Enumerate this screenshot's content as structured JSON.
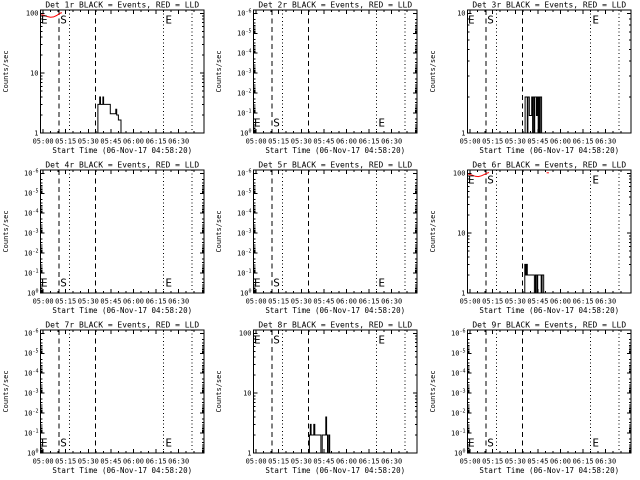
{
  "window": {
    "background": "#ffffff",
    "foreground": "#000000"
  },
  "chart_data": {
    "type": "line",
    "grid": {
      "rows": 3,
      "cols": 3
    },
    "shared": {
      "xlabel": "Start Time (06-Nov-17 04:58:20)",
      "ylabel": "Counts/sec",
      "x_ticks": [
        {
          "t": 0,
          "label": "05:00"
        },
        {
          "t": 15,
          "label": "05:15"
        },
        {
          "t": 30,
          "label": "05:30"
        },
        {
          "t": 45,
          "label": "05:45"
        },
        {
          "t": 60,
          "label": "06:00"
        },
        {
          "t": 75,
          "label": "06:15"
        },
        {
          "t": 90,
          "label": "06:30"
        }
      ],
      "x_domain_minutes_rel_0500": [
        -1.7,
        106.8
      ],
      "x_minor_step_min": 5,
      "series_colors": {
        "events": "#000000",
        "lld": "#ff0000"
      },
      "vlines": [
        {
          "t": 10.6,
          "style": "dashed"
        },
        {
          "t": 17.6,
          "style": "dotted"
        },
        {
          "t": 34.8,
          "style": "dashed"
        },
        {
          "t": 80.0,
          "style": "dotted"
        },
        {
          "t": 98.8,
          "style": "dotted"
        }
      ],
      "markers": [
        {
          "label": "E",
          "t": -1.4
        },
        {
          "label": "S",
          "t": 11.4
        },
        {
          "label": "E",
          "t": 81.2
        }
      ]
    },
    "plots": [
      {
        "id": "det-1r",
        "title": "Det 1r BLACK = Events, RED = LLD",
        "y_axis": {
          "kind": "log",
          "tick_values": [
            100,
            10,
            1
          ],
          "tick_labels": [
            "100",
            "10",
            "1"
          ]
        },
        "marker_row": "top",
        "events_steps": [
          [
            36.4,
            3
          ],
          [
            37.6,
            4
          ],
          [
            38.1,
            3
          ],
          [
            39.7,
            4
          ],
          [
            40.2,
            3
          ],
          [
            44.6,
            2.1
          ],
          [
            48.3,
            2.5
          ],
          [
            48.9,
            2
          ],
          [
            50.0,
            1.65
          ],
          [
            51.7,
            1
          ]
        ],
        "lld": [
          [
            [
              -1.2,
              95
            ],
            [
              1.0,
              92
            ],
            [
              3.0,
              88
            ],
            [
              5.0,
              86
            ],
            [
              7.0,
              87
            ],
            [
              9.0,
              92
            ],
            [
              10.5,
              97
            ],
            [
              11.7,
              101
            ],
            [
              12.6,
              102
            ]
          ]
        ]
      },
      {
        "id": "det-2r",
        "title": "Det 2r BLACK = Events, RED = LLD",
        "y_axis": {
          "kind": "log_pow_inverted",
          "exponents": [
            -6,
            -5,
            -4,
            -3,
            -2,
            -1,
            0
          ]
        },
        "marker_row": "bottom",
        "events_steps": [],
        "lld": []
      },
      {
        "id": "det-3r",
        "title": "Det 3r BLACK = Events, RED = LLD",
        "y_axis": {
          "kind": "log",
          "tick_values": [
            10,
            1
          ],
          "tick_labels": [
            "10",
            "1"
          ]
        },
        "marker_row": "top",
        "events_steps": [
          [
            36.5,
            2
          ],
          [
            38.0,
            1
          ],
          [
            38.4,
            2
          ],
          [
            39.3,
            1.4
          ],
          [
            40.9,
            2
          ],
          [
            41.5,
            1
          ],
          [
            41.9,
            2
          ],
          [
            42.6,
            1
          ],
          [
            42.9,
            2
          ],
          [
            44.0,
            1.4
          ],
          [
            44.6,
            2
          ],
          [
            45.2,
            1
          ],
          [
            45.6,
            2
          ],
          [
            46.2,
            1
          ],
          [
            46.6,
            2
          ],
          [
            47.5,
            1
          ]
        ],
        "lld": []
      },
      {
        "id": "det-4r",
        "title": "Det 4r BLACK = Events, RED = LLD",
        "y_axis": {
          "kind": "log_pow_inverted",
          "exponents": [
            -6,
            -5,
            -4,
            -3,
            -2,
            -1,
            0
          ]
        },
        "marker_row": "bottom",
        "events_steps": [],
        "lld": []
      },
      {
        "id": "det-5r",
        "title": "Det 5r BLACK = Events, RED = LLD",
        "y_axis": {
          "kind": "log_pow_inverted",
          "exponents": [
            -6,
            -5,
            -4,
            -3,
            -2,
            -1,
            0
          ]
        },
        "marker_row": "bottom",
        "events_steps": [],
        "lld": []
      },
      {
        "id": "det-6r",
        "title": "Det 6r BLACK = Events, RED = LLD",
        "y_axis": {
          "kind": "log",
          "tick_values": [
            100,
            10,
            1
          ],
          "tick_labels": [
            "100",
            "10",
            "1"
          ]
        },
        "marker_row": "top",
        "events_steps": [
          [
            36.3,
            3
          ],
          [
            36.9,
            2
          ],
          [
            37.4,
            3
          ],
          [
            38.0,
            2
          ],
          [
            42.7,
            1
          ],
          [
            43.4,
            2
          ],
          [
            44.2,
            1
          ],
          [
            44.9,
            2
          ],
          [
            47.2,
            1
          ],
          [
            47.8,
            2
          ],
          [
            48.9,
            1
          ]
        ],
        "lld": [
          [
            [
              -1.2,
              97
            ],
            [
              1.5,
              93
            ],
            [
              3.5,
              89
            ],
            [
              5.5,
              88
            ],
            [
              7.5,
              91
            ],
            [
              9.5,
              96
            ],
            [
              11.0,
              100
            ],
            [
              12.6,
              103
            ]
          ],
          [
            [
              50.8,
              102
            ],
            [
              52.3,
              102
            ]
          ]
        ]
      },
      {
        "id": "det-7r",
        "title": "Det 7r BLACK = Events, RED = LLD",
        "y_axis": {
          "kind": "log_pow_inverted",
          "exponents": [
            -6,
            -5,
            -4,
            -3,
            -2,
            -1,
            0
          ]
        },
        "marker_row": "bottom",
        "events_steps": [],
        "lld": []
      },
      {
        "id": "det-8r",
        "title": "Det 8r BLACK = Events, RED = LLD",
        "y_axis": {
          "kind": "log",
          "tick_values": [
            100,
            10,
            1
          ],
          "tick_labels": [
            "100",
            "10",
            "1"
          ]
        },
        "marker_row": "top",
        "events_steps": [
          [
            35.4,
            2
          ],
          [
            36.0,
            3
          ],
          [
            36.5,
            2
          ],
          [
            38.3,
            3
          ],
          [
            39.0,
            2
          ],
          [
            43.0,
            1
          ],
          [
            43.9,
            2
          ],
          [
            46.3,
            4
          ],
          [
            46.8,
            2
          ],
          [
            47.4,
            1
          ],
          [
            48.2,
            2
          ],
          [
            48.9,
            1
          ]
        ],
        "lld": []
      },
      {
        "id": "det-9r",
        "title": "Det 9r BLACK = Events, RED = LLD",
        "y_axis": {
          "kind": "log_pow_inverted",
          "exponents": [
            -6,
            -5,
            -4,
            -3,
            -2,
            -1,
            0
          ]
        },
        "marker_row": "bottom",
        "events_steps": [],
        "lld": []
      }
    ]
  }
}
